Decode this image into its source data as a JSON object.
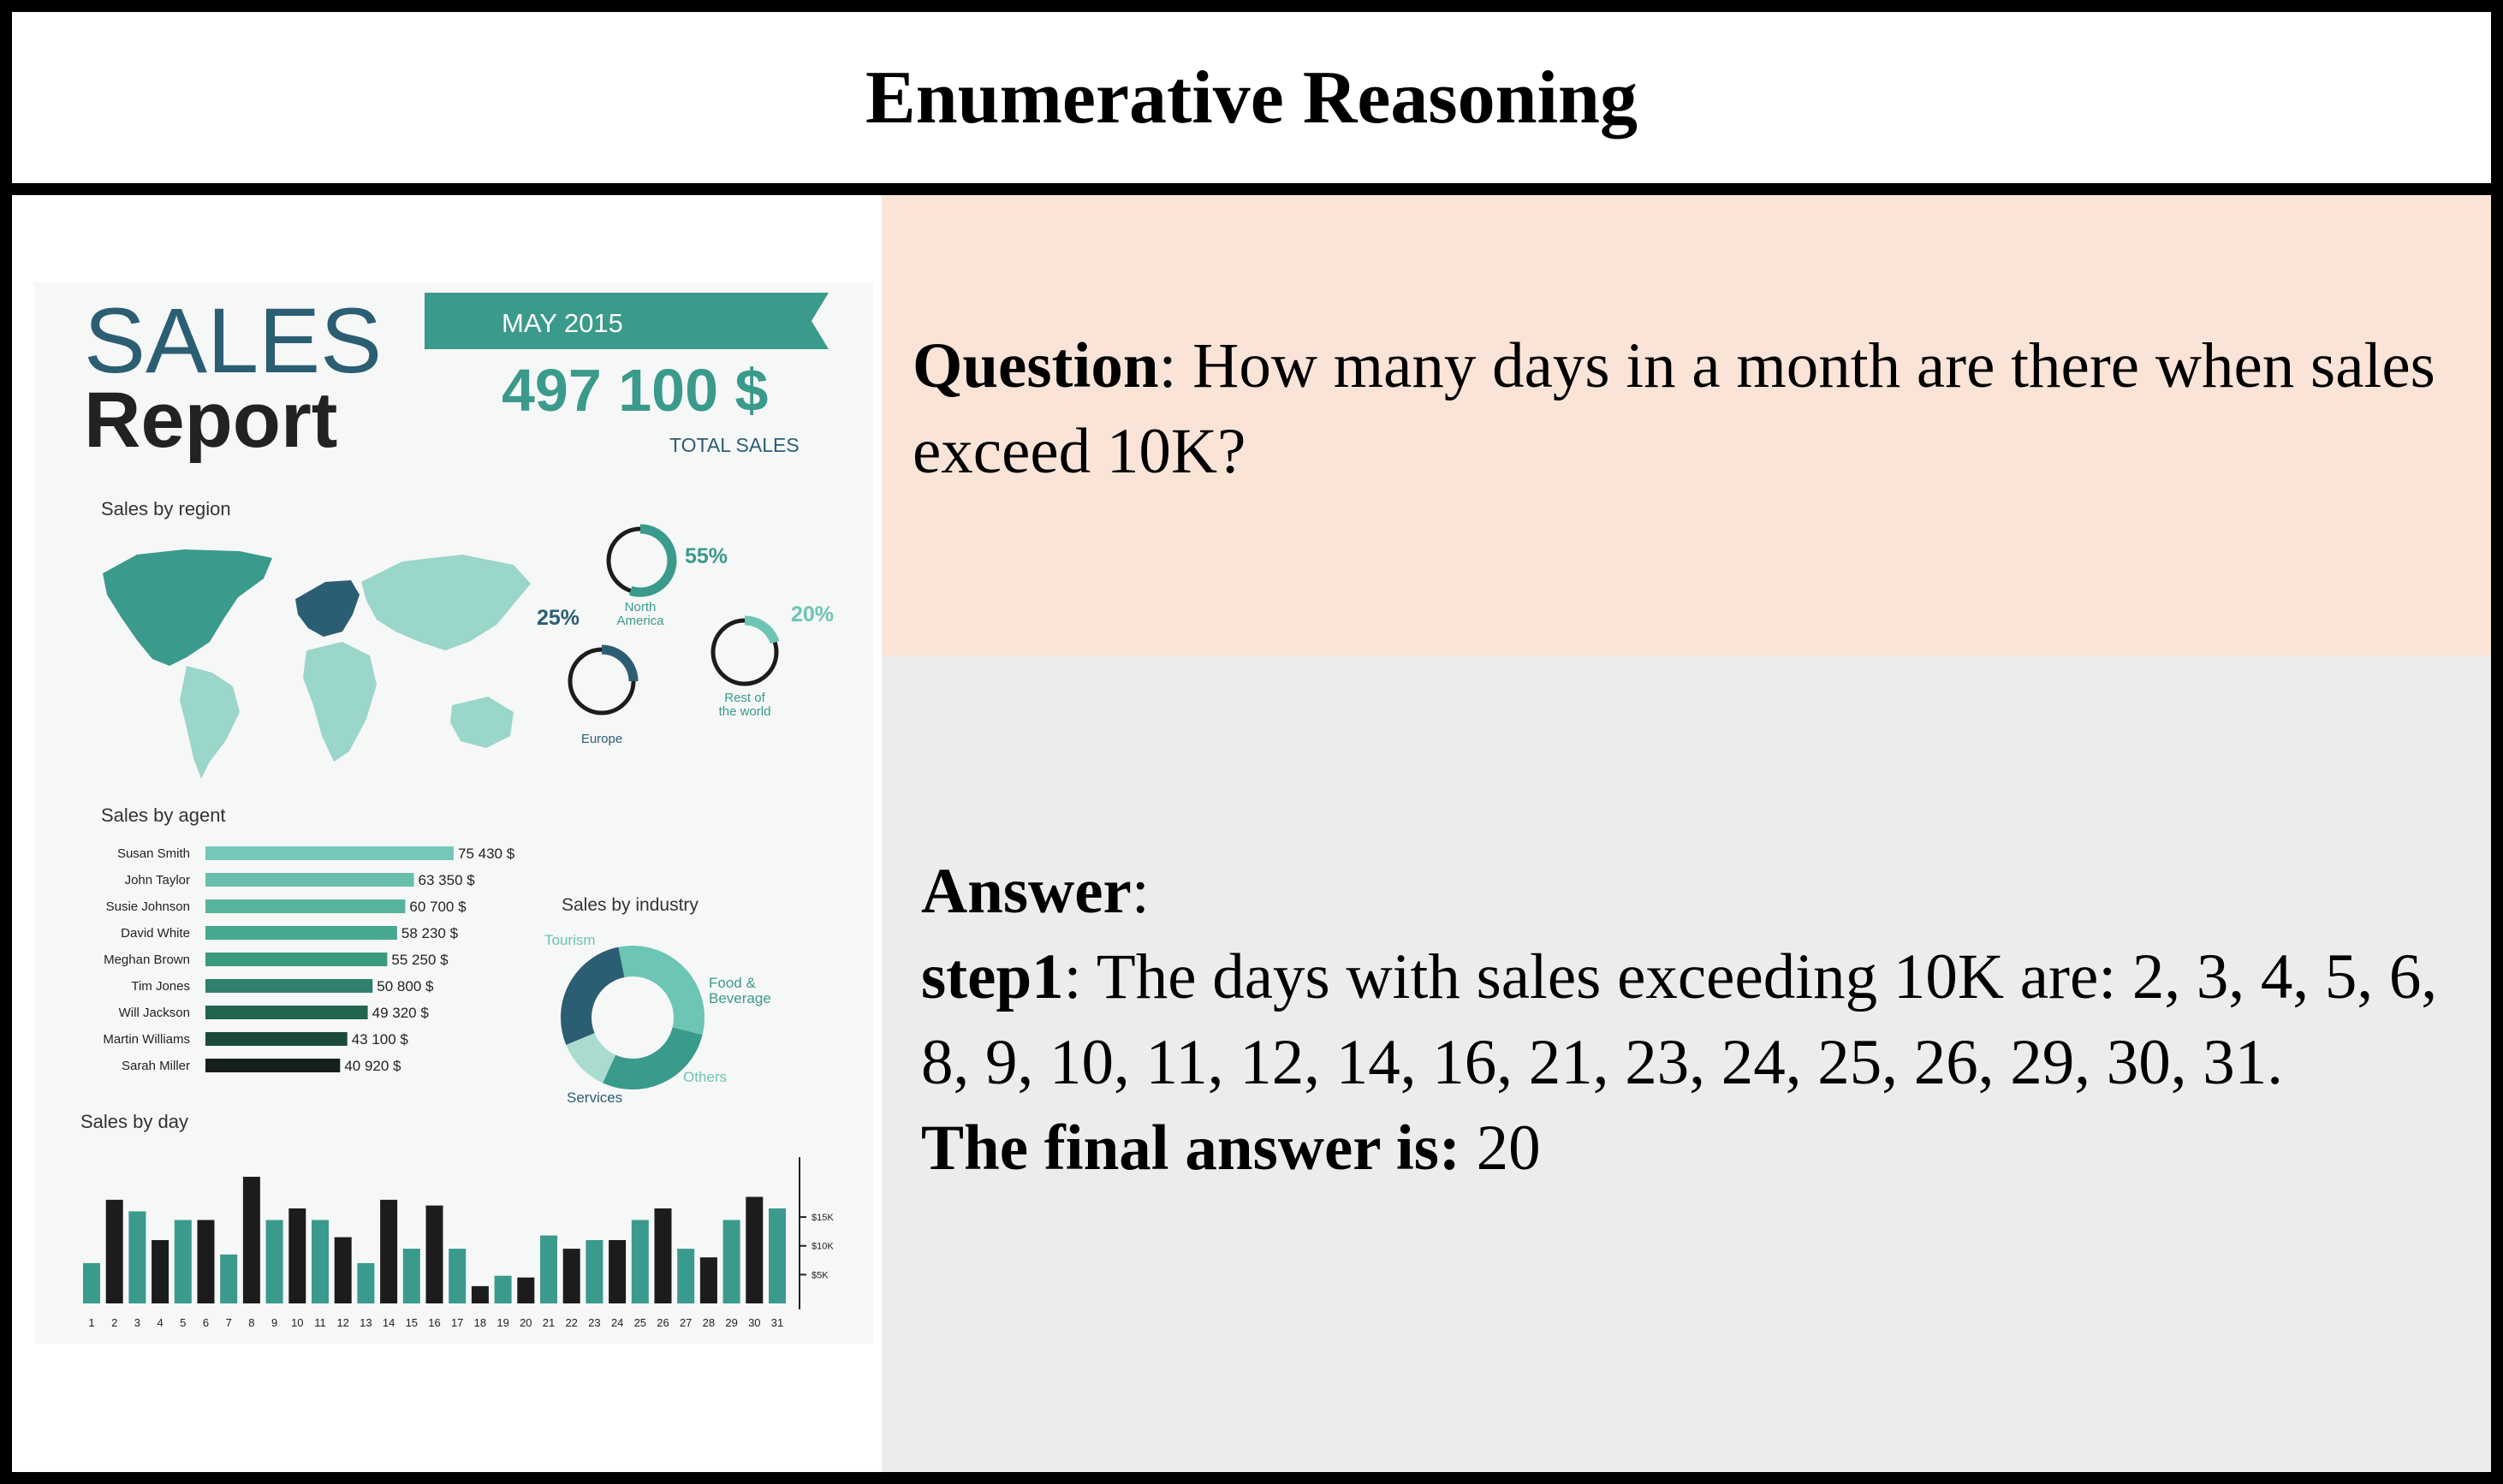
{
  "header": {
    "title": "Enumerative Reasoning"
  },
  "question": {
    "label": "Question",
    "text": "How many days in a month are there when sales exceed 10K?"
  },
  "answer": {
    "label": "Answer",
    "step_label": "step1",
    "step_text": "The days with sales exceeding 10K are: 2, 3, 4, 5, 6, 8, 9, 10, 11, 12, 14, 16, 21, 23, 24, 25, 26, 29, 30, 31.",
    "final_label": "The final answer is:",
    "final_value": "20"
  },
  "infographic": {
    "title_line1": "SALES",
    "title_line2": "Report",
    "month": "MAY 2015",
    "total": "497 100 $",
    "total_label": "TOTAL SALES",
    "colors": {
      "dark_teal": "#2b5e73",
      "teal": "#3a9a8c",
      "light_teal": "#6cc5b5",
      "black": "#1c1c1c"
    }
  },
  "chart_data": [
    {
      "type": "pie",
      "title": "Sales by region",
      "slices": [
        {
          "label": "North America",
          "value": 55,
          "value_label": "55%",
          "color": "#3a9a8c"
        },
        {
          "label": "Europe",
          "value": 25,
          "value_label": "25%",
          "color": "#2b5e73"
        },
        {
          "label": "Rest of the world",
          "value": 20,
          "value_label": "20%",
          "color": "#6cc5b5"
        }
      ]
    },
    {
      "type": "bar",
      "orientation": "horizontal",
      "title": "Sales by agent",
      "categories": [
        "Susan Smith",
        "John Taylor",
        "Susie Johnson",
        "David White",
        "Meghan Brown",
        "Tim Jones",
        "Will Jackson",
        "Martin Williams",
        "Sarah Miller"
      ],
      "values": [
        75430,
        63350,
        60700,
        58230,
        55250,
        50800,
        49320,
        43100,
        40920
      ],
      "value_labels": [
        "75 430 $",
        "63 350 $",
        "60 700 $",
        "58 230 $",
        "55 250 $",
        "50 800 $",
        "49 320 $",
        "43 100 $",
        "40 920 $"
      ],
      "colors": [
        "#74c8ba",
        "#69bfae",
        "#55b39e",
        "#45a790",
        "#3a9a80",
        "#2f806d",
        "#22644f",
        "#1b4a3c",
        "#141f1c"
      ]
    },
    {
      "type": "pie",
      "title": "Sales by industry",
      "slices": [
        {
          "label": "Tourism",
          "value": 32,
          "color": "#6cc5b5"
        },
        {
          "label": "Food & Beverage",
          "value": 28,
          "color": "#3a9a8c"
        },
        {
          "label": "Others",
          "value": 12,
          "color": "#a9dccf"
        },
        {
          "label": "Services",
          "value": 28,
          "color": "#2b5e73"
        }
      ]
    },
    {
      "type": "bar",
      "title": "Sales by day",
      "categories": [
        "1",
        "2",
        "3",
        "4",
        "5",
        "6",
        "7",
        "8",
        "9",
        "10",
        "11",
        "12",
        "13",
        "14",
        "15",
        "16",
        "17",
        "18",
        "19",
        "20",
        "21",
        "22",
        "23",
        "24",
        "25",
        "26",
        "27",
        "28",
        "29",
        "30",
        "31"
      ],
      "values": [
        7000,
        18000,
        16000,
        11000,
        14500,
        14500,
        8500,
        22000,
        14500,
        16500,
        14500,
        11500,
        7000,
        18000,
        9500,
        17000,
        9500,
        3000,
        4800,
        4500,
        11800,
        9500,
        11000,
        11000,
        14500,
        16500,
        9500,
        8000,
        14500,
        18500,
        16500
      ],
      "colors": [
        "#3a9a8c",
        "#1c1c1c",
        "#3a9a8c",
        "#1c1c1c",
        "#3a9a8c",
        "#1c1c1c",
        "#3a9a8c",
        "#1c1c1c",
        "#3a9a8c",
        "#1c1c1c",
        "#3a9a8c",
        "#1c1c1c",
        "#3a9a8c",
        "#1c1c1c",
        "#3a9a8c",
        "#1c1c1c",
        "#3a9a8c",
        "#1c1c1c",
        "#3a9a8c",
        "#1c1c1c",
        "#3a9a8c",
        "#1c1c1c",
        "#3a9a8c",
        "#1c1c1c",
        "#3a9a8c",
        "#1c1c1c",
        "#3a9a8c",
        "#1c1c1c",
        "#3a9a8c",
        "#1c1c1c",
        "#3a9a8c"
      ],
      "tick_labels": [
        "1",
        "2",
        "3",
        "4",
        "5",
        "6",
        "7",
        "8",
        "9",
        "10",
        "11",
        "12",
        "13",
        "14",
        "15",
        "16",
        "17",
        "18",
        "19",
        "20",
        "21",
        "22",
        "23",
        "24",
        "25",
        "26",
        "27",
        "28",
        "29",
        "30",
        "31"
      ],
      "axis_ticks": [
        "$15K",
        "$10K",
        "$5K"
      ],
      "axis_values": [
        15000,
        10000,
        5000
      ]
    }
  ]
}
